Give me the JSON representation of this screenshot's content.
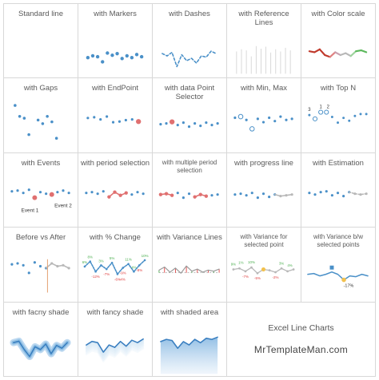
{
  "charts": [
    {
      "title": "Standard line"
    },
    {
      "title": "with Markers"
    },
    {
      "title": "with Dashes"
    },
    {
      "title": "with Reference Lines"
    },
    {
      "title": "with Color scale"
    },
    {
      "title": "with Gaps"
    },
    {
      "title": "with EndPoint"
    },
    {
      "title": "with data Point Selector"
    },
    {
      "title": "with Min, Max"
    },
    {
      "title": "with Top N",
      "labels": [
        "3",
        "1",
        "2"
      ]
    },
    {
      "title": "with Events",
      "labels": [
        "Event 1",
        "Event 2"
      ]
    },
    {
      "title": "with period selection"
    },
    {
      "title": "with multiple period selection"
    },
    {
      "title": "with progress line"
    },
    {
      "title": "with Estimation"
    },
    {
      "title": "Before vs After"
    },
    {
      "title": "with % Change",
      "labels": [
        "8%",
        "3%",
        "5%",
        "11%",
        "10%",
        "6%",
        "4%",
        "-12%",
        "-7%",
        "-6%",
        "-9%",
        "-8%",
        "-4%"
      ]
    },
    {
      "title": "with Variance Lines"
    },
    {
      "title": "with Variance for selected point",
      "labels": [
        "9%",
        "1%",
        "10%",
        "3%",
        "4%",
        "-7%",
        "-5%",
        "-2%"
      ]
    },
    {
      "title": "with Variance b/w selected points",
      "labels": [
        "-17%"
      ]
    },
    {
      "title": "with facny shade"
    },
    {
      "title": "with fancy shade"
    },
    {
      "title": "with shaded area"
    }
  ],
  "branding": {
    "heading": "Excel Line Charts",
    "site": "MrTemplateMan.com"
  },
  "colors": {
    "line": "#4a90c8",
    "highlight": "#e07070",
    "gray": "#b8b8b8",
    "scale_red": "#c0392b",
    "scale_green": "#5cb85c"
  }
}
